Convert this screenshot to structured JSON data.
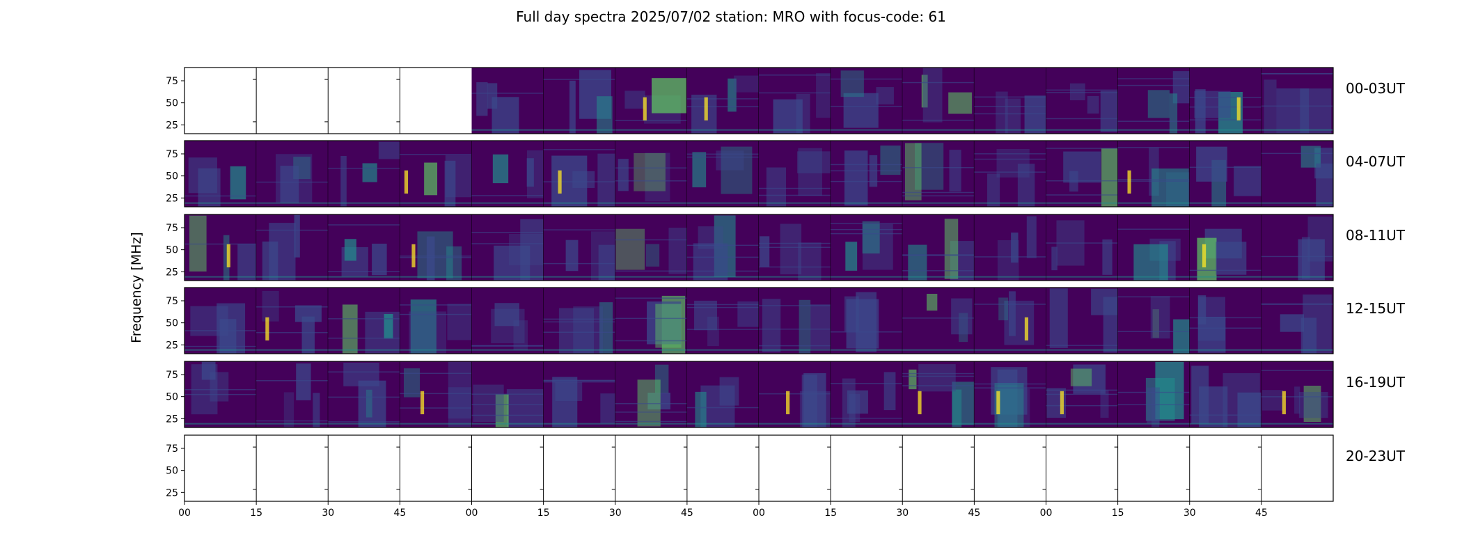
{
  "chart_data": {
    "type": "heatmap",
    "title": "Full day spectra 2025/07/02 station: MRO with focus-code: 61",
    "ylabel": "Frequency [MHz]",
    "colormap": "viridis",
    "y_ticks": [
      25,
      50,
      75
    ],
    "ylim": [
      15,
      90
    ],
    "x_ticks": [
      "00",
      "15",
      "30",
      "45",
      "00",
      "15",
      "30",
      "45",
      "00",
      "15",
      "30",
      "45",
      "00",
      "15",
      "30",
      "45"
    ],
    "panels_per_row": 16,
    "rows": [
      {
        "label": "00-03UT",
        "data_present": [
          false,
          false,
          false,
          false,
          true,
          true,
          true,
          true,
          true,
          true,
          true,
          true,
          true,
          true,
          true,
          true
        ]
      },
      {
        "label": "04-07UT",
        "data_present": [
          true,
          true,
          true,
          true,
          true,
          true,
          true,
          true,
          true,
          true,
          true,
          true,
          true,
          true,
          true,
          true
        ]
      },
      {
        "label": "08-11UT",
        "data_present": [
          true,
          true,
          true,
          true,
          true,
          true,
          true,
          true,
          true,
          true,
          true,
          true,
          true,
          true,
          true,
          true
        ]
      },
      {
        "label": "12-15UT",
        "data_present": [
          true,
          true,
          true,
          true,
          true,
          true,
          true,
          true,
          true,
          true,
          true,
          true,
          true,
          true,
          true,
          true
        ]
      },
      {
        "label": "16-19UT",
        "data_present": [
          true,
          true,
          true,
          true,
          true,
          true,
          true,
          true,
          true,
          true,
          true,
          true,
          true,
          true,
          true,
          true
        ]
      },
      {
        "label": "20-23UT",
        "data_present": [
          false,
          false,
          false,
          false,
          false,
          false,
          false,
          false,
          false,
          false,
          false,
          false,
          false,
          false,
          false,
          false
        ]
      }
    ],
    "colors": {
      "background": "#44015a",
      "low": "#3b4a8c",
      "mid": "#21908d",
      "high": "#5ec962",
      "peak": "#fde725"
    }
  }
}
